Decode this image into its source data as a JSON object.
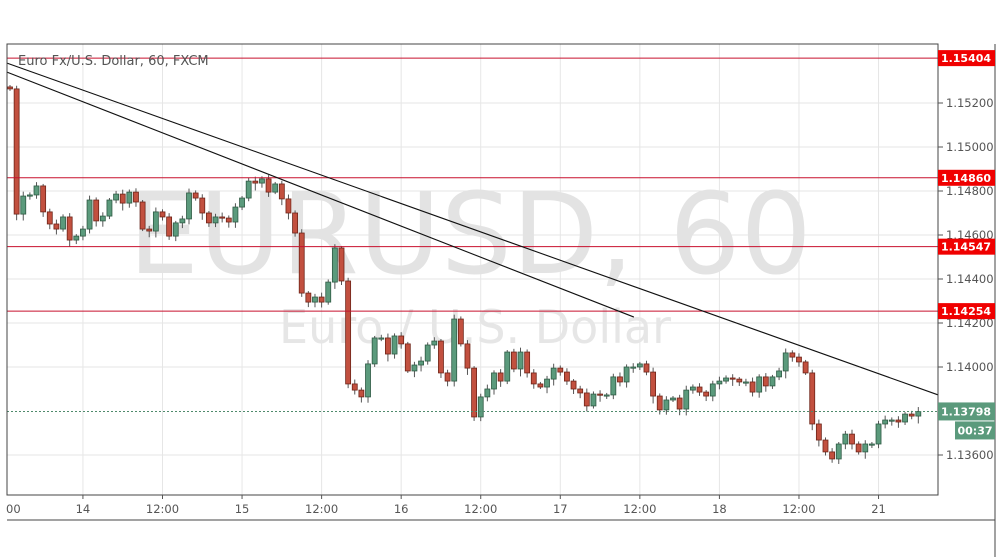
{
  "chart_data": {
    "type": "candlestick",
    "title": "Euro Fx/U.S. Dollar, 60, FXCM",
    "watermark": {
      "symbol": "EURUSD, 60",
      "description": "Euro / U.S. Dollar"
    },
    "ylim": [
      1.1347,
      1.1564
    ],
    "y_ticks": [
      "1.15200",
      "1.15000",
      "1.14800",
      "1.14600",
      "1.14400",
      "1.14200",
      "1.14000",
      "1.13600"
    ],
    "x_ticks": [
      {
        "label": "00",
        "index": 0
      },
      {
        "label": "14",
        "index": 11
      },
      {
        "label": "12:00",
        "index": 23
      },
      {
        "label": "15",
        "index": 35
      },
      {
        "label": "12:00",
        "index": 47
      },
      {
        "label": "16",
        "index": 59
      },
      {
        "label": "12:00",
        "index": 71
      },
      {
        "label": "17",
        "index": 83
      },
      {
        "label": "12:00",
        "index": 95
      },
      {
        "label": "18",
        "index": 107
      },
      {
        "label": "12:00",
        "index": 119
      },
      {
        "label": "21",
        "index": 131
      }
    ],
    "grid": true,
    "first_open": 1.15273,
    "closes": [
      1.15264,
      1.14695,
      1.14777,
      1.14782,
      1.14823,
      1.14705,
      1.1465,
      1.14627,
      1.14682,
      1.14577,
      1.14595,
      1.14627,
      1.14759,
      1.14664,
      1.14686,
      1.14759,
      1.14786,
      1.14745,
      1.14795,
      1.1475,
      1.14627,
      1.14618,
      1.14705,
      1.14682,
      1.14595,
      1.14655,
      1.14673,
      1.14791,
      1.14768,
      1.147,
      1.14655,
      1.14682,
      1.14677,
      1.14659,
      1.14727,
      1.14768,
      1.14845,
      1.14836,
      1.14855,
      1.14795,
      1.14832,
      1.14764,
      1.147,
      1.14609,
      1.14336,
      1.14295,
      1.14318,
      1.14295,
      1.14386,
      1.14541,
      1.14391,
      1.13923,
      1.13895,
      1.13864,
      1.14014,
      1.14132,
      1.14132,
      1.14059,
      1.14141,
      1.14105,
      1.13982,
      1.14009,
      1.14027,
      1.141,
      1.14118,
      1.13973,
      1.13936,
      1.14218,
      1.14105,
      1.13995,
      1.13773,
      1.13864,
      1.139,
      1.13973,
      1.13936,
      1.14068,
      1.13991,
      1.14068,
      1.13973,
      1.13923,
      1.13909,
      1.13945,
      1.13995,
      1.13977,
      1.13936,
      1.139,
      1.13882,
      1.13823,
      1.13877,
      1.13873,
      1.13873,
      1.13955,
      1.13932,
      1.14,
      1.14,
      1.14014,
      1.13977,
      1.13868,
      1.13805,
      1.1385,
      1.13859,
      1.13809,
      1.13895,
      1.13909,
      1.13886,
      1.13868,
      1.13923,
      1.13936,
      1.1395,
      1.13945,
      1.13932,
      1.13932,
      1.13886,
      1.13955,
      1.13914,
      1.13955,
      1.13982,
      1.14064,
      1.14045,
      1.14023,
      1.13973,
      1.13741,
      1.13668,
      1.13614,
      1.13582,
      1.1365,
      1.13695,
      1.1365,
      1.13614,
      1.1365,
      1.1365,
      1.13741,
      1.13759,
      1.13759,
      1.1375,
      1.13786,
      1.13777,
      1.13798
    ],
    "horizontal_levels": [
      {
        "price": 1.15404,
        "label": "1.15404"
      },
      {
        "price": 1.1486,
        "label": "1.14860"
      },
      {
        "price": 1.14547,
        "label": "1.14547"
      },
      {
        "price": 1.14254,
        "label": "1.14254"
      }
    ],
    "trendlines": [
      {
        "from": {
          "index": -0.5,
          "price": 1.15382
        },
        "to": {
          "index": 140,
          "price": 1.13873
        }
      },
      {
        "from": {
          "index": -0.5,
          "price": 1.15341
        },
        "to": {
          "index": 94.1,
          "price": 1.14227
        }
      }
    ],
    "current_price": {
      "value": 1.13798,
      "label": "1.13798",
      "countdown": "00:37"
    }
  },
  "colors": {
    "up": "#5b9a7c",
    "down": "#c2503f",
    "level_line": "#c8102e",
    "level_label": "#f00000",
    "price_label": "#5b9a7c",
    "trendline": "#111111",
    "grid": "#e6e6e6"
  }
}
